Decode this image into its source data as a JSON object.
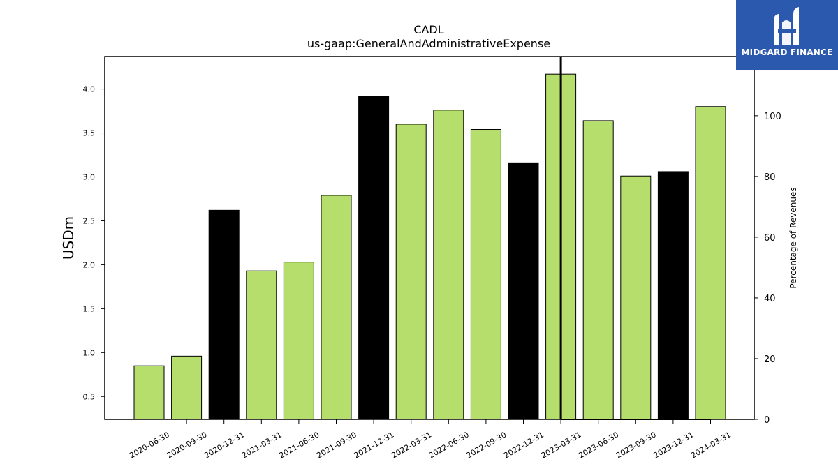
{
  "chart_data": {
    "type": "bar",
    "title": "CADL",
    "subtitle": "us-gaap:GeneralAndAdministrativeExpense",
    "ylabel": "USDm",
    "y2label": "Percentage of Revenues",
    "categories": [
      "2020-06-30",
      "2020-09-30",
      "2020-12-31",
      "2021-03-31",
      "2021-06-30",
      "2021-09-30",
      "2021-12-31",
      "2022-03-31",
      "2022-06-30",
      "2022-09-30",
      "2022-12-31",
      "2023-03-31",
      "2023-06-30",
      "2023-09-30",
      "2023-12-31",
      "2024-03-31"
    ],
    "values": [
      0.85,
      0.96,
      2.62,
      1.93,
      2.03,
      2.79,
      3.92,
      3.6,
      3.76,
      3.54,
      3.16,
      4.17,
      3.64,
      3.01,
      3.06,
      3.8
    ],
    "bar_colors": [
      "#b5de6c",
      "#b5de6c",
      "#000000",
      "#b5de6c",
      "#b5de6c",
      "#b5de6c",
      "#000000",
      "#b5de6c",
      "#b5de6c",
      "#b5de6c",
      "#000000",
      "#b5de6c",
      "#b5de6c",
      "#b5de6c",
      "#000000",
      "#b5de6c"
    ],
    "ylim": [
      0.24,
      4.37
    ],
    "yticks": [
      "0.5",
      "1.0",
      "1.5",
      "2.0",
      "2.5",
      "3.0",
      "3.5",
      "4.0"
    ],
    "y2lim": [
      0,
      119.5
    ],
    "y2ticks": [
      "0",
      "20",
      "40",
      "60",
      "80",
      "100"
    ],
    "y2_series": [
      {
        "x": "2023-03-31",
        "value": 0
      },
      {
        "x": "2023-06-30",
        "value": 0
      },
      {
        "x": "2023-09-30",
        "value": 0
      },
      {
        "x": "2023-12-31",
        "value": 0
      },
      {
        "x": "2024-03-31",
        "value": 0
      }
    ],
    "vertical_marker": "2023-03-31",
    "grid": false
  },
  "logo": {
    "text": "MIDGARD FINANCE",
    "bg_color": "#2b59ad"
  }
}
